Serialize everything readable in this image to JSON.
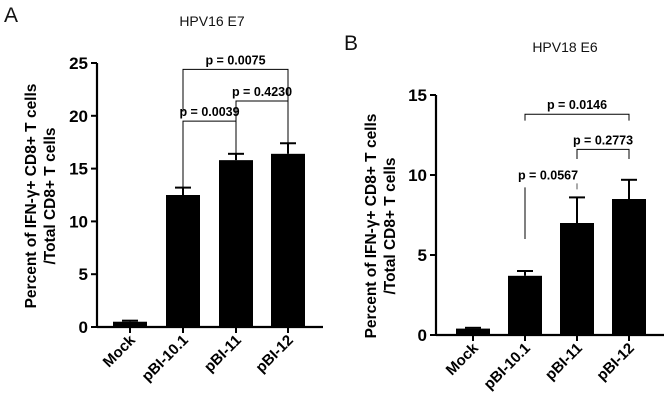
{
  "chart_data": [
    {
      "type": "bar",
      "panel_label": "A",
      "title": "HPV16 E7",
      "ylabel_lines": [
        "Percent of IFN-γ+ CD8+ T cells",
        "/Total CD8+ T cells"
      ],
      "xlabel": "",
      "ylim": [
        0,
        25
      ],
      "yticks": [
        0,
        5,
        10,
        15,
        20,
        25
      ],
      "categories": [
        "Mock",
        "pBI-10.1",
        "pBI-11",
        "pBI-12"
      ],
      "values": [
        0.5,
        12.5,
        15.8,
        16.4
      ],
      "error_upper": [
        0.6,
        13.2,
        16.4,
        17.4
      ],
      "significance": [
        {
          "from": 1,
          "to": 2,
          "label": "p = 0.0039",
          "level": 19.5
        },
        {
          "from": 2,
          "to": 3,
          "label": "p = 0.4230",
          "level": 21.4
        },
        {
          "from": 1,
          "to": 3,
          "label": "p = 0.0075",
          "level": 24.4
        }
      ]
    },
    {
      "type": "bar",
      "panel_label": "B",
      "title": "HPV18 E6",
      "ylabel_lines": [
        "Percent of IFN-γ+ CD8+ T cells",
        "/Total CD8+ T cells"
      ],
      "xlabel": "",
      "ylim": [
        0,
        15
      ],
      "yticks": [
        0,
        5,
        10,
        15
      ],
      "categories": [
        "Mock",
        "pBI-10.1",
        "pBI-11",
        "pBI-12"
      ],
      "values": [
        0.4,
        3.7,
        7.0,
        8.5
      ],
      "error_upper": [
        0.45,
        4.0,
        8.6,
        9.7
      ],
      "significance": [
        {
          "from": 1,
          "to": 2,
          "label": "p = 0.0567",
          "level": 9.6
        },
        {
          "from": 2,
          "to": 3,
          "label": "p = 0.2773",
          "level": 11.6
        },
        {
          "from": 1,
          "to": 3,
          "label": "p = 0.0146",
          "level": 13.8
        }
      ]
    }
  ]
}
